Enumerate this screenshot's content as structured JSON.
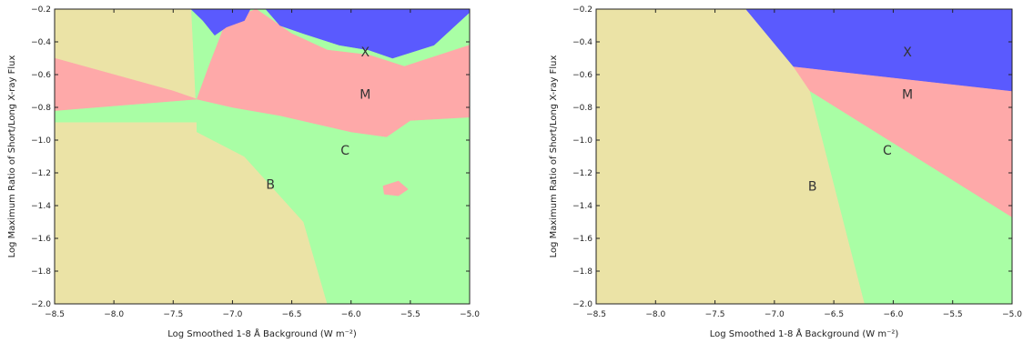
{
  "colors": {
    "B": "#ebe3a6",
    "C": "#a9fea5",
    "M": "#fea9a9",
    "X": "#5a5afe",
    "axis": "#222222"
  },
  "chart_data": [
    {
      "type": "heatmap",
      "panel": "left",
      "title": "",
      "xlabel": "Log Smoothed 1-8 Å Background (W m⁻²)",
      "ylabel": "Log Maximum Ratio of Short/Long X-ray Flux",
      "xlim": [
        -8.5,
        -5.0
      ],
      "ylim": [
        -2.0,
        -0.2
      ],
      "x_ticks": [
        -8.5,
        -8.0,
        -7.5,
        -7.0,
        -6.5,
        -6.0,
        -5.5,
        -5.0
      ],
      "y_ticks": [
        -2.0,
        -1.8,
        -1.6,
        -1.4,
        -1.2,
        -1.0,
        -0.8,
        -0.6,
        -0.4,
        -0.2
      ],
      "x_tick_labels": [
        "−8.5",
        "−8.0",
        "−7.5",
        "−7.0",
        "−6.5",
        "−6.0",
        "−5.5",
        "−5.0"
      ],
      "y_tick_labels": [
        "−2.0",
        "−1.8",
        "−1.6",
        "−1.4",
        "−1.2",
        "−1.0",
        "−0.8",
        "−0.6",
        "−0.4",
        "−0.2"
      ],
      "grid": false,
      "classes": [
        "B",
        "C",
        "M",
        "X"
      ],
      "labels": [
        {
          "text": "X",
          "x": -5.88,
          "y": -0.46
        },
        {
          "text": "M",
          "x": -5.88,
          "y": -0.72
        },
        {
          "text": "C",
          "x": -6.05,
          "y": -1.06
        },
        {
          "text": "B",
          "x": -6.68,
          "y": -1.27
        }
      ],
      "regions": [
        {
          "class": "B",
          "points": [
            [
              -8.5,
              -0.2
            ],
            [
              -8.5,
              -2.0
            ],
            [
              -6.2,
              -2.0
            ],
            [
              -6.4,
              -1.5
            ],
            [
              -6.9,
              -1.1
            ],
            [
              -7.3,
              -0.95
            ],
            [
              -7.35,
              -0.2
            ]
          ]
        },
        {
          "class": "C",
          "points": [
            [
              -8.5,
              -0.89
            ],
            [
              -8.5,
              -0.82
            ],
            [
              -7.3,
              -0.75
            ],
            [
              -7.0,
              -0.8
            ],
            [
              -6.6,
              -0.85
            ],
            [
              -6.0,
              -0.95
            ],
            [
              -5.7,
              -0.98
            ],
            [
              -5.5,
              -0.88
            ],
            [
              -5.0,
              -0.86
            ],
            [
              -5.0,
              -2.0
            ],
            [
              -6.2,
              -2.0
            ],
            [
              -6.4,
              -1.5
            ],
            [
              -6.9,
              -1.1
            ],
            [
              -7.3,
              -0.95
            ],
            [
              -7.3,
              -0.89
            ]
          ]
        },
        {
          "class": "M",
          "points": [
            [
              -8.5,
              -0.5
            ],
            [
              -7.5,
              -0.7
            ],
            [
              -7.3,
              -0.75
            ],
            [
              -7.2,
              -0.55
            ],
            [
              -7.05,
              -0.27
            ],
            [
              -6.8,
              -0.2
            ],
            [
              -6.5,
              -0.35
            ],
            [
              -6.2,
              -0.45
            ],
            [
              -5.85,
              -0.48
            ],
            [
              -5.55,
              -0.55
            ],
            [
              -5.0,
              -0.42
            ],
            [
              -5.0,
              -0.86
            ],
            [
              -5.5,
              -0.88
            ],
            [
              -5.7,
              -0.98
            ],
            [
              -6.0,
              -0.95
            ],
            [
              -6.6,
              -0.85
            ],
            [
              -7.0,
              -0.8
            ],
            [
              -7.3,
              -0.75
            ],
            [
              -8.5,
              -0.82
            ]
          ]
        },
        {
          "class": "M",
          "points": [
            [
              -5.73,
              -1.28
            ],
            [
              -5.6,
              -1.25
            ],
            [
              -5.52,
              -1.3
            ],
            [
              -5.6,
              -1.34
            ],
            [
              -5.72,
              -1.33
            ]
          ]
        },
        {
          "class": "X",
          "points": [
            [
              -7.35,
              -0.2
            ],
            [
              -6.72,
              -0.2
            ],
            [
              -6.6,
              -0.3
            ],
            [
              -6.4,
              -0.35
            ],
            [
              -6.1,
              -0.42
            ],
            [
              -5.85,
              -0.45
            ],
            [
              -5.65,
              -0.5
            ],
            [
              -5.3,
              -0.42
            ],
            [
              -5.0,
              -0.22
            ],
            [
              -5.0,
              -0.2
            ],
            [
              -5.0,
              -0.2
            ],
            [
              -6.72,
              -0.2
            ],
            [
              -6.85,
              -0.2
            ],
            [
              -6.9,
              -0.27
            ],
            [
              -7.05,
              -0.31
            ],
            [
              -7.15,
              -0.36
            ],
            [
              -7.25,
              -0.27
            ]
          ]
        }
      ]
    },
    {
      "type": "heatmap",
      "panel": "right",
      "title": "",
      "xlabel": "Log Smoothed 1-8 Å Background (W m⁻²)",
      "ylabel": "Log Maximum Ratio of Short/Long X-ray Flux",
      "xlim": [
        -8.5,
        -5.0
      ],
      "ylim": [
        -2.0,
        -0.2
      ],
      "x_ticks": [
        -8.5,
        -8.0,
        -7.5,
        -7.0,
        -6.5,
        -6.0,
        -5.5,
        -5.0
      ],
      "y_ticks": [
        -2.0,
        -1.8,
        -1.6,
        -1.4,
        -1.2,
        -1.0,
        -0.8,
        -0.6,
        -0.4,
        -0.2
      ],
      "x_tick_labels": [
        "−8.5",
        "−8.0",
        "−7.5",
        "−7.0",
        "−6.5",
        "−6.0",
        "−5.5",
        "−5.0"
      ],
      "y_tick_labels": [
        "−2.0",
        "−1.8",
        "−1.6",
        "−1.4",
        "−1.2",
        "−1.0",
        "−0.8",
        "−0.6",
        "−0.4",
        "−0.2"
      ],
      "grid": false,
      "classes": [
        "B",
        "C",
        "M",
        "X"
      ],
      "labels": [
        {
          "text": "X",
          "x": -5.88,
          "y": -0.46
        },
        {
          "text": "M",
          "x": -5.88,
          "y": -0.72
        },
        {
          "text": "C",
          "x": -6.05,
          "y": -1.06
        },
        {
          "text": "B",
          "x": -6.68,
          "y": -1.28
        }
      ],
      "regions": [
        {
          "class": "B",
          "points": [
            [
              -8.5,
              -0.2
            ],
            [
              -8.5,
              -2.0
            ],
            [
              -6.24,
              -2.0
            ],
            [
              -6.7,
              -0.7
            ],
            [
              -6.84,
              -0.55
            ],
            [
              -7.24,
              -0.2
            ]
          ]
        },
        {
          "class": "C",
          "points": [
            [
              -6.7,
              -0.7
            ],
            [
              -6.24,
              -2.0
            ],
            [
              -5.0,
              -2.0
            ],
            [
              -5.0,
              -1.47
            ]
          ]
        },
        {
          "class": "M",
          "points": [
            [
              -6.84,
              -0.55
            ],
            [
              -6.7,
              -0.7
            ],
            [
              -5.0,
              -1.47
            ],
            [
              -5.0,
              -0.7
            ]
          ]
        },
        {
          "class": "X",
          "points": [
            [
              -7.24,
              -0.2
            ],
            [
              -6.84,
              -0.55
            ],
            [
              -5.0,
              -0.7
            ],
            [
              -5.0,
              -0.2
            ]
          ]
        }
      ]
    }
  ]
}
